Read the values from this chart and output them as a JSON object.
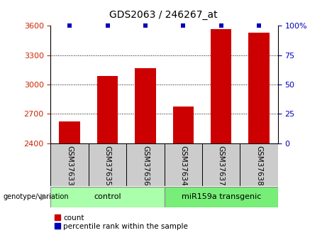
{
  "title": "GDS2063 / 246267_at",
  "samples": [
    "GSM37633",
    "GSM37635",
    "GSM37636",
    "GSM37634",
    "GSM37637",
    "GSM37638"
  ],
  "bar_values": [
    2620,
    3090,
    3170,
    2775,
    3565,
    3530
  ],
  "bar_color": "#cc0000",
  "percentile_color": "#0000bb",
  "ylim_left": [
    2400,
    3600
  ],
  "ylim_right": [
    0,
    100
  ],
  "yticks_left": [
    2400,
    2700,
    3000,
    3300,
    3600
  ],
  "yticks_right": [
    0,
    25,
    50,
    75,
    100
  ],
  "ytick_labels_right": [
    "0",
    "25",
    "50",
    "75",
    "100%"
  ],
  "group1_label": "control",
  "group2_label": "miR159a transgenic",
  "genotype_label": "genotype/variation",
  "legend_count": "count",
  "legend_percentile": "percentile rank within the sample",
  "background_color": "#ffffff",
  "group1_color": "#aaffaa",
  "group2_color": "#77ee77",
  "tick_color_left": "#cc2200",
  "tick_color_right": "#0000bb",
  "bar_width": 0.55,
  "grid_lines": [
    2700,
    3000,
    3300
  ]
}
